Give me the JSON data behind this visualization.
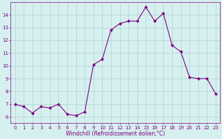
{
  "x": [
    0,
    1,
    2,
    3,
    4,
    5,
    6,
    7,
    8,
    9,
    10,
    11,
    12,
    13,
    14,
    15,
    16,
    17,
    18,
    19,
    20,
    21,
    22,
    23
  ],
  "y": [
    7.0,
    6.8,
    6.3,
    6.8,
    6.7,
    7.0,
    6.2,
    6.1,
    6.4,
    10.1,
    10.5,
    12.8,
    13.3,
    13.5,
    13.5,
    14.6,
    13.5,
    14.1,
    11.6,
    11.1,
    9.1,
    9.0,
    9.0,
    7.8
  ],
  "line_color": "#800080",
  "marker": "D",
  "marker_size": 2.0,
  "bg_color": "#d6f0f0",
  "grid_color": "#b0d0d0",
  "xlabel": "Windchill (Refroidissement éolien,°C)",
  "xlabel_color": "#800080",
  "tick_color": "#800080",
  "label_color": "#800080",
  "xlim": [
    -0.5,
    23.5
  ],
  "ylim": [
    5.5,
    15.0
  ],
  "yticks": [
    6,
    7,
    8,
    9,
    10,
    11,
    12,
    13,
    14
  ],
  "xticks": [
    0,
    1,
    2,
    3,
    4,
    5,
    6,
    7,
    8,
    9,
    10,
    11,
    12,
    13,
    14,
    15,
    16,
    17,
    18,
    19,
    20,
    21,
    22,
    23
  ],
  "tick_fontsize": 5.0,
  "xlabel_fontsize": 5.5,
  "linewidth": 0.8
}
